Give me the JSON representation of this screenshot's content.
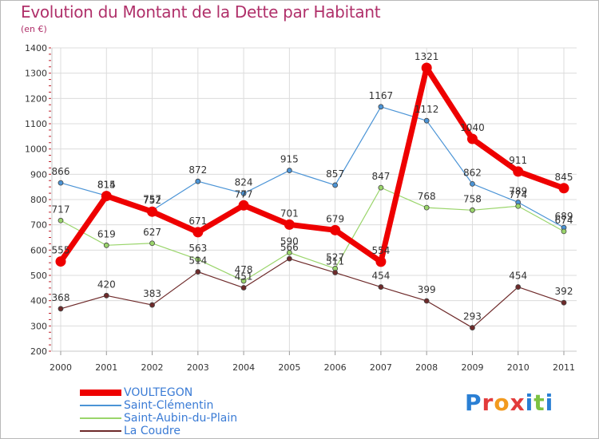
{
  "header": {
    "title": "Evolution du Montant de la Dette par Habitant",
    "subtitle": "(en €)"
  },
  "logo": {
    "text": "Proxiti",
    "letter_colors": [
      "#2a7fd4",
      "#e23b3b",
      "#f29a1e",
      "#e23b3b",
      "#2a7fd4",
      "#7cc242",
      "#2a7fd4"
    ]
  },
  "chart_data": {
    "type": "line",
    "title": "Evolution du Montant de la Dette par Habitant",
    "subtitle": "(en €)",
    "x": [
      "2000",
      "2001",
      "2002",
      "2003",
      "2004",
      "2005",
      "2006",
      "2007",
      "2008",
      "2009",
      "2010",
      "2011"
    ],
    "ylim": [
      200,
      1400
    ],
    "yticks": [
      "200",
      "300",
      "400",
      "500",
      "600",
      "700",
      "800",
      "900",
      "1000",
      "1100",
      "1200",
      "1300",
      "1400"
    ],
    "grid": true,
    "legend_position": "bottom-left",
    "series": [
      {
        "name": "VOULTEGON",
        "color": "#ee0000",
        "values": [
          555,
          814,
          752,
          671,
          777,
          701,
          679,
          554,
          1321,
          1040,
          911,
          845
        ],
        "labels": [
          "555",
          "814",
          "752",
          "671",
          "777",
          "701",
          "679",
          "554",
          "1321",
          "1040",
          "911",
          "845"
        ]
      },
      {
        "name": "Saint-Clémentin",
        "color": "#4b94d6",
        "values": [
          866,
          815,
          757,
          872,
          824,
          915,
          857,
          1167,
          1112,
          862,
          789,
          689
        ],
        "labels": [
          "866",
          "815",
          "757",
          "872",
          "824",
          "915",
          "857",
          "1167",
          "1112",
          "862",
          "789",
          "689"
        ]
      },
      {
        "name": "Saint-Aubin-du-Plain",
        "color": "#9ad56b",
        "values": [
          717,
          619,
          627,
          563,
          478,
          590,
          527,
          847,
          768,
          758,
          774,
          674
        ],
        "labels": [
          "717",
          "619",
          "627",
          "563",
          "478",
          "590",
          "527",
          "847",
          "768",
          "758",
          "774",
          "674"
        ]
      },
      {
        "name": "La Coudre",
        "color": "#6e2a2a",
        "values": [
          368,
          420,
          383,
          514,
          451,
          566,
          511,
          454,
          399,
          293,
          454,
          392
        ],
        "labels": [
          "368",
          "420",
          "383",
          "514",
          "451",
          "566",
          "511",
          "454",
          "399",
          "293",
          "454",
          "392"
        ]
      }
    ]
  }
}
